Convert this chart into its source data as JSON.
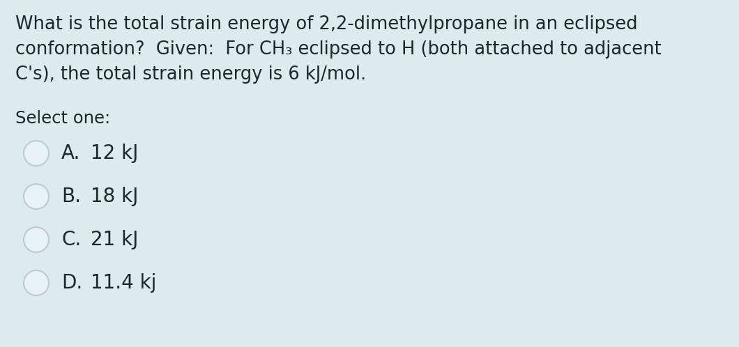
{
  "background_color": "#ddeaee",
  "question_lines": [
    "What is the total strain energy of 2,2-dimethylpropane in an eclipsed",
    "conformation?  Given:  For CH₃ eclipsed to H (both attached to adjacent",
    "C's), the total strain energy is 6 kJ/mol."
  ],
  "select_label": "Select one:",
  "options": [
    {
      "letter": "A.",
      "text": "12 kJ"
    },
    {
      "letter": "B.",
      "text": "18 kJ"
    },
    {
      "letter": "C.",
      "text": "21 kJ"
    },
    {
      "letter": "D.",
      "text": "11.4 kj"
    }
  ],
  "text_color": "#1a2a2a",
  "circle_edge_color": "#bbcccc",
  "circle_face_color": "#e8f2f4",
  "font_size_question": 18.5,
  "font_size_select": 17.5,
  "font_size_options": 20.0,
  "fig_width": 10.6,
  "fig_height": 4.98,
  "dpi": 100
}
